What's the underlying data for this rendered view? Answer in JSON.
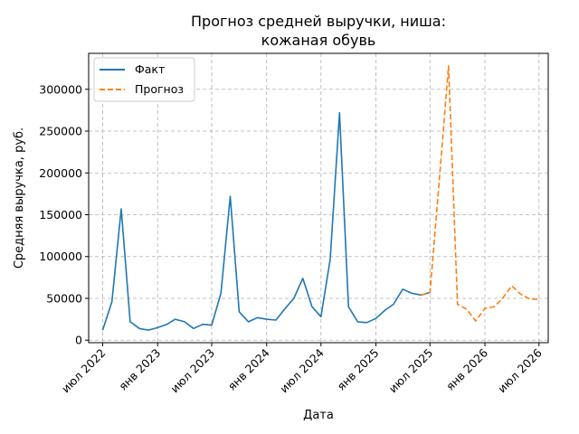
{
  "chart_data": {
    "type": "line",
    "title_line1": "Прогноз средней выручки, ниша:",
    "title_line2": "кожаная обувь",
    "xlabel": "Дата",
    "ylabel": "Средняя выручка, руб.",
    "ylim": [
      -3000,
      343000
    ],
    "yticks": [
      0,
      50000,
      100000,
      150000,
      200000,
      250000,
      300000
    ],
    "ytick_labels": [
      "0",
      "50000",
      "100000",
      "150000",
      "200000",
      "250000",
      "300000"
    ],
    "xlim": [
      "2022-05-15",
      "2026-08-01"
    ],
    "xticks": [
      "2022-07-01",
      "2023-01-01",
      "2023-07-01",
      "2024-01-01",
      "2024-07-01",
      "2025-01-01",
      "2025-07-01",
      "2026-01-01",
      "2026-07-01"
    ],
    "xtick_labels": [
      "июл 2022",
      "янв 2023",
      "июл 2023",
      "янв 2024",
      "июл 2024",
      "янв 2025",
      "июл 2025",
      "янв 2026",
      "июл 2026"
    ],
    "grid": true,
    "legend_position": "top-left",
    "series": [
      {
        "name": "Факт",
        "color": "#1f77b4",
        "style": "solid",
        "x": [
          "2022-07-01",
          "2022-08-01",
          "2022-09-01",
          "2022-10-01",
          "2022-11-01",
          "2022-12-01",
          "2023-01-01",
          "2023-02-01",
          "2023-03-01",
          "2023-04-01",
          "2023-05-01",
          "2023-06-01",
          "2023-07-01",
          "2023-08-01",
          "2023-09-01",
          "2023-10-01",
          "2023-11-01",
          "2023-12-01",
          "2024-01-01",
          "2024-02-01",
          "2024-03-01",
          "2024-04-01",
          "2024-05-01",
          "2024-06-01",
          "2024-07-01",
          "2024-08-01",
          "2024-09-01",
          "2024-10-01",
          "2024-11-01",
          "2024-12-01",
          "2025-01-01",
          "2025-02-01",
          "2025-03-01",
          "2025-04-01",
          "2025-05-01",
          "2025-06-01",
          "2025-07-01"
        ],
        "y": [
          12000,
          46000,
          157000,
          22000,
          14000,
          12000,
          15000,
          19000,
          25000,
          22000,
          14000,
          19000,
          18000,
          56000,
          172000,
          34000,
          22000,
          27000,
          25000,
          24000,
          37000,
          50000,
          74000,
          40000,
          28000,
          97000,
          272000,
          40000,
          22000,
          21000,
          26000,
          36000,
          43000,
          61000,
          56000,
          54000,
          57000
        ]
      },
      {
        "name": "Прогноз",
        "color": "#ff7f0e",
        "style": "dashed",
        "x": [
          "2025-06-01",
          "2025-07-01",
          "2025-08-01",
          "2025-09-01",
          "2025-10-01",
          "2025-11-01",
          "2025-12-01",
          "2026-01-01",
          "2026-02-01",
          "2026-03-01",
          "2026-04-01",
          "2026-05-01",
          "2026-06-01",
          "2026-07-01"
        ],
        "y": [
          54000,
          57000,
          190000,
          328000,
          43000,
          37000,
          23000,
          38000,
          40000,
          50000,
          65000,
          55000,
          49000,
          49000
        ]
      }
    ]
  }
}
